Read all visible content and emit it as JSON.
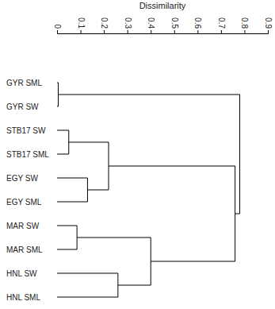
{
  "chart_data": {
    "type": "dendrogram",
    "xlabel": "Dissimilarity",
    "leaves": [
      "GYR SML",
      "GYR SW",
      "STB17 SW",
      "STB17 SML",
      "EGY SW",
      "EGY SML",
      "MAR SW",
      "MAR SML",
      "HNL SW",
      "HNL SML"
    ],
    "merges": [
      [
        0,
        1
      ],
      [
        2,
        3
      ],
      [
        6,
        7
      ],
      [
        4,
        5
      ],
      [
        11,
        13
      ],
      [
        8,
        9
      ],
      [
        12,
        15
      ],
      [
        14,
        16
      ],
      [
        10,
        17
      ]
    ],
    "heights": [
      0.005,
      0.05,
      0.085,
      0.13,
      0.22,
      0.26,
      0.4,
      0.76,
      0.78
    ],
    "xlim": [
      0,
      0.9
    ],
    "xticks": [
      0,
      0.1,
      0.2,
      0.3,
      0.4,
      0.5,
      0.6,
      0.7,
      0.8,
      0.9
    ]
  }
}
